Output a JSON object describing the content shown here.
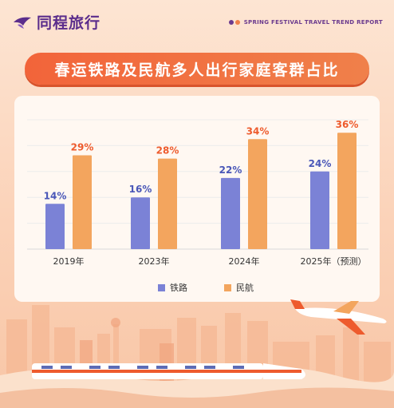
{
  "brand": {
    "name": "同程旅行",
    "report_tag": "SPRING FESTIVAL TRAVEL TREND REPORT"
  },
  "title": "春运铁路及民航多人出行家庭客群占比",
  "colors": {
    "rail": "#7b82d6",
    "air": "#f3a55e",
    "rail_label": "#4a57b8",
    "air_label": "#ee5b2d",
    "title_bg": "#f2643a"
  },
  "chart_data": {
    "type": "bar",
    "title": "春运铁路及民航多人出行家庭客群占比",
    "categories": [
      "2019年",
      "2023年",
      "2024年",
      "2025年（预测）"
    ],
    "series": [
      {
        "name": "铁路",
        "values": [
          14,
          16,
          22,
          24
        ],
        "labels": [
          "14%",
          "16%",
          "22%",
          "24%"
        ]
      },
      {
        "name": "民航",
        "values": [
          29,
          28,
          34,
          36
        ],
        "labels": [
          "29%",
          "28%",
          "34%",
          "36%"
        ]
      }
    ],
    "unit": "%",
    "ylim": [
      0,
      40
    ],
    "grid": true,
    "legend_position": "bottom"
  }
}
